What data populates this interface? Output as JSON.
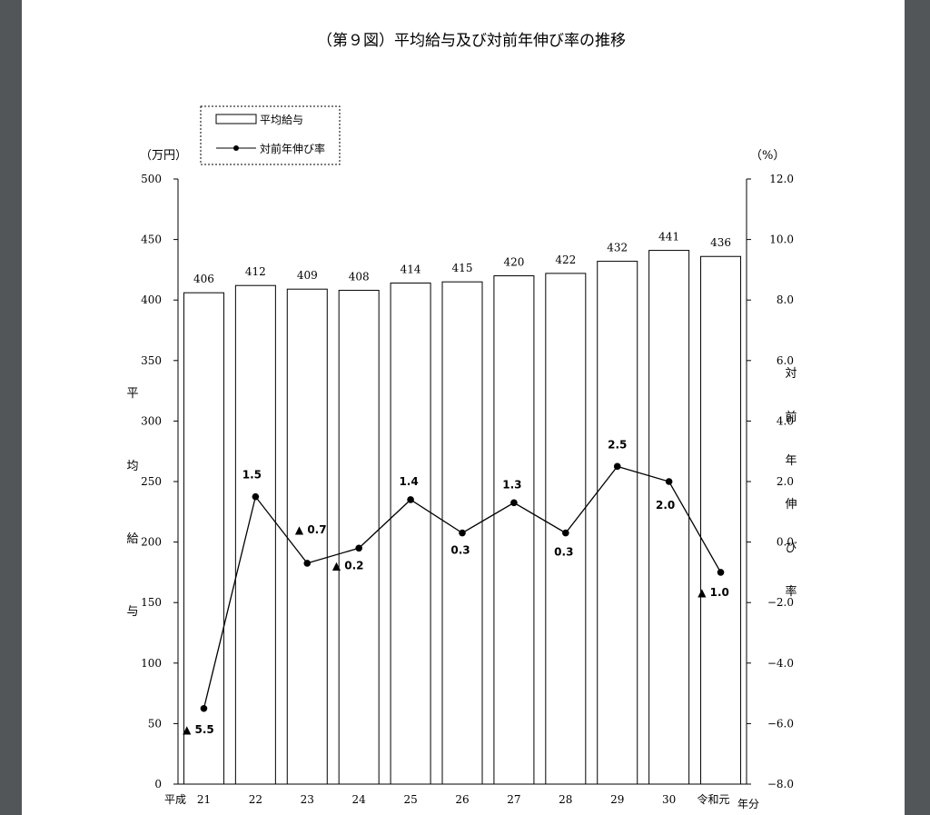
{
  "chart_data": {
    "type": "bar+line",
    "title": "（第９図）平均給与及び対前年伸び率の推移",
    "left_axis": {
      "unit": "（万円）",
      "label": [
        "平",
        "均",
        "給",
        "与"
      ],
      "ylim": [
        0,
        500
      ],
      "ticks": [
        "0",
        "50",
        "100",
        "150",
        "200",
        "250",
        "300",
        "350",
        "400",
        "450",
        "500"
      ]
    },
    "right_axis": {
      "unit": "（%）",
      "label": [
        "対",
        "前",
        "年",
        "伸",
        "び",
        "率"
      ],
      "ylim": [
        -8.0,
        12.0
      ],
      "ticks": [
        "−8.0",
        "−6.0",
        "−4.0",
        "−2.0",
        "0.0",
        "2.0",
        "4.0",
        "6.0",
        "8.0",
        "10.0",
        "12.0"
      ],
      "tick_values": [
        -8,
        -6,
        -4,
        -2,
        0,
        2,
        4,
        6,
        8,
        10,
        12
      ]
    },
    "x_era_heisei": "平成",
    "categories": [
      "21",
      "22",
      "23",
      "24",
      "25",
      "26",
      "27",
      "28",
      "29",
      "30",
      "令和元"
    ],
    "x_unit": "年分",
    "legend": {
      "bar": "平均給与",
      "line": "対前年伸び率",
      "position": "top-left"
    },
    "series": [
      {
        "name": "平均給与",
        "type": "bar",
        "axis": "left",
        "values": [
          406,
          412,
          409,
          408,
          414,
          415,
          420,
          422,
          432,
          441,
          436
        ]
      },
      {
        "name": "対前年伸び率",
        "type": "line",
        "axis": "right",
        "values": [
          -5.5,
          1.5,
          -0.7,
          -0.2,
          1.4,
          0.3,
          1.3,
          0.3,
          2.5,
          2.0,
          -1.0
        ],
        "labels": [
          "▲ 5.5",
          "1.5",
          "▲ 0.7",
          "▲ 0.2",
          "1.4",
          "0.3",
          "1.3",
          "0.3",
          "2.5",
          "2.0",
          "▲ 1.0"
        ]
      }
    ],
    "grid": false
  }
}
